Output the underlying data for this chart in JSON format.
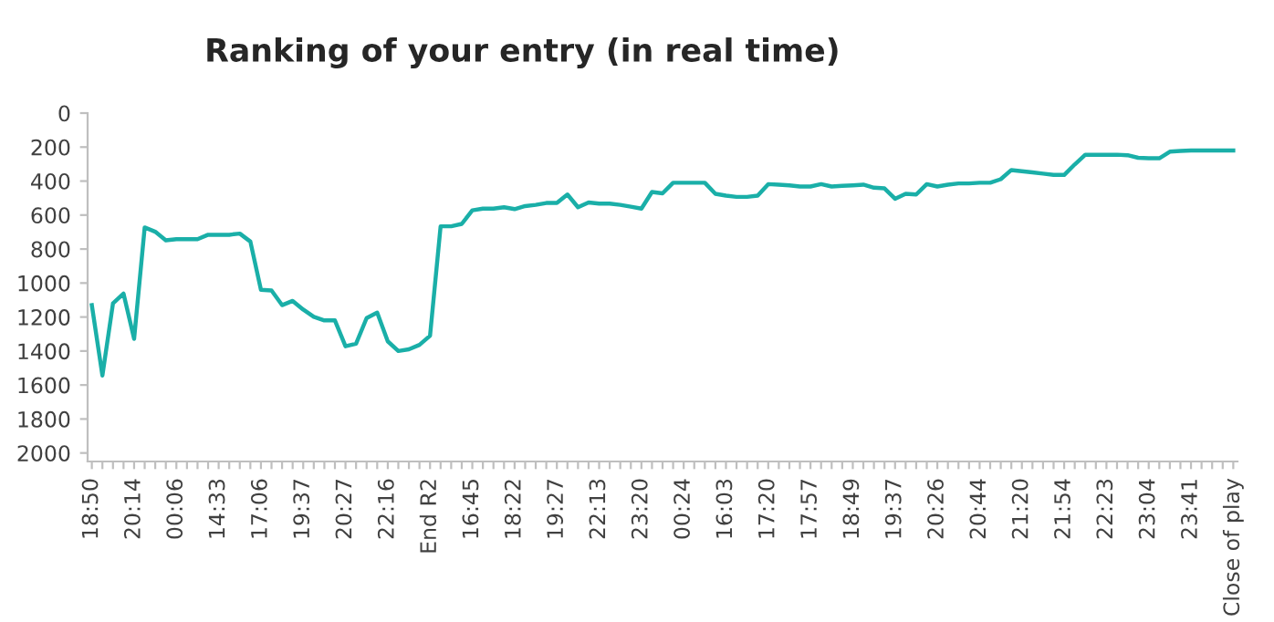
{
  "chart_data": {
    "type": "line",
    "title": "Ranking of your entry (in real time)",
    "categories": [
      "18:50",
      null,
      null,
      null,
      "20:14",
      null,
      null,
      null,
      "00:06",
      null,
      null,
      null,
      "14:33",
      null,
      null,
      null,
      "17:06",
      null,
      null,
      null,
      "19:37",
      null,
      null,
      null,
      "20:27",
      null,
      null,
      null,
      "22:16",
      null,
      null,
      null,
      "End R2",
      null,
      null,
      null,
      "16:45",
      null,
      null,
      null,
      "18:22",
      null,
      null,
      null,
      "19:27",
      null,
      null,
      null,
      "22:13",
      null,
      null,
      null,
      "23:20",
      null,
      null,
      null,
      "00:24",
      null,
      null,
      null,
      "16:03",
      null,
      null,
      null,
      "17:20",
      null,
      null,
      null,
      "17:57",
      null,
      null,
      null,
      "18:49",
      null,
      null,
      null,
      "19:37",
      null,
      null,
      null,
      "20:26",
      null,
      null,
      null,
      "20:44",
      null,
      null,
      null,
      "21:20",
      null,
      null,
      null,
      "21:54",
      null,
      null,
      null,
      "22:23",
      null,
      null,
      null,
      "23:04",
      null,
      null,
      null,
      "23:41",
      null,
      null,
      null,
      "Close of play"
    ],
    "series": [
      {
        "color": "#1aafa8",
        "values": [
          1130,
          1544,
          1120,
          1062,
          1328,
          673,
          698,
          749,
          742,
          742,
          742,
          716,
          716,
          716,
          709,
          756,
          1040,
          1044,
          1130,
          1105,
          1156,
          1199,
          1220,
          1220,
          1372,
          1357,
          1206,
          1174,
          1343,
          1400,
          1390,
          1364,
          1310,
          666,
          666,
          652,
          572,
          562,
          562,
          554,
          565,
          547,
          540,
          529,
          529,
          479,
          554,
          526,
          533,
          533,
          540,
          551,
          562,
          464,
          472,
          410,
          410,
          410,
          410,
          475,
          486,
          493,
          493,
          486,
          418,
          421,
          425,
          432,
          432,
          418,
          432,
          428,
          425,
          421,
          439,
          443,
          504,
          475,
          479,
          418,
          432,
          421,
          414,
          414,
          410,
          410,
          389,
          335,
          342,
          349,
          356,
          364,
          364,
          302,
          245,
          245,
          245,
          245,
          248,
          263,
          266,
          266,
          227,
          223,
          220,
          220,
          220,
          220,
          220
        ]
      }
    ],
    "ylim": [
      2050,
      0
    ],
    "yticks": [
      0,
      200,
      400,
      600,
      800,
      1000,
      1200,
      1400,
      1600,
      1800,
      2000
    ],
    "grid": false,
    "legend": false,
    "marker": "none",
    "line_style": "solid"
  }
}
